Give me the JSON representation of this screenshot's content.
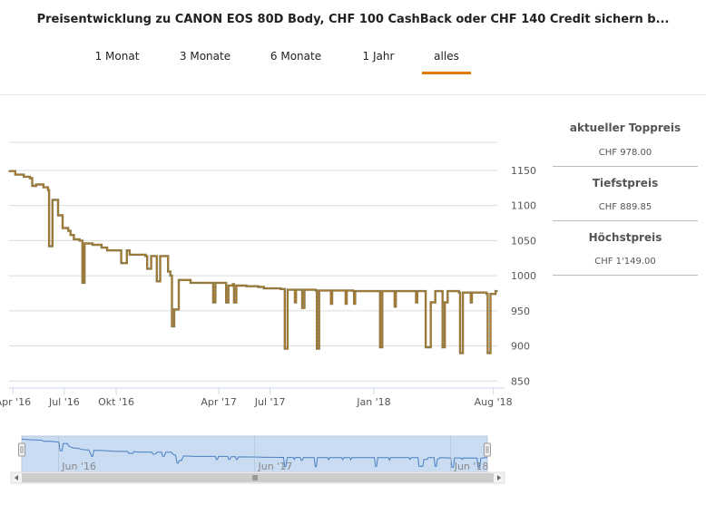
{
  "title": "Preisentwicklung zu CANON EOS 80D Body, CHF 100 CashBack oder CHF 140 Credit sichern b...",
  "tabs": [
    "1 Monat",
    "3 Monate",
    "6 Monate",
    "1 Jahr",
    "alles"
  ],
  "active_tab": "alles",
  "side": {
    "current_label": "aktueller Toppreis",
    "current_value": "CHF 978.00",
    "min_label": "Tiefstpreis",
    "min_value": "CHF 889.85",
    "max_label": "Höchstpreis",
    "max_value": "CHF 1'149.00"
  },
  "colors": {
    "accent": "#e07b00",
    "line_main": "#8a7a4a",
    "navigator_fill": "#c9dcf2",
    "navigator_line": "#4a7fc1"
  },
  "chart_data": {
    "type": "line",
    "y_ticks": [
      "1150",
      "1100",
      "1050",
      "1000",
      "950",
      "900",
      "850"
    ],
    "ylim": [
      840,
      1190
    ],
    "x_ticks": [
      "Apr '16",
      "Jul '16",
      "Okt '16",
      "Apr '17",
      "Jul '17",
      "Jan '18",
      "Aug '18"
    ],
    "nav_ticks": [
      "Jun '16",
      "Jun '17",
      "Jun '18"
    ],
    "grid": true,
    "x_range": [
      "2016-03-25",
      "2018-08-08"
    ],
    "series": [
      {
        "values": [
          [
            "2016-03-25",
            1149
          ],
          [
            "2016-04-05",
            1144
          ],
          [
            "2016-04-20",
            1141
          ],
          [
            "2016-05-01",
            1139
          ],
          [
            "2016-05-05",
            1128
          ],
          [
            "2016-05-12",
            1130
          ],
          [
            "2016-05-25",
            1126
          ],
          [
            "2016-06-02",
            1122
          ],
          [
            "2016-06-04",
            1042
          ],
          [
            "2016-06-08",
            1042
          ],
          [
            "2016-06-10",
            1108
          ],
          [
            "2016-06-18",
            1108
          ],
          [
            "2016-06-20",
            1086
          ],
          [
            "2016-06-28",
            1068
          ],
          [
            "2016-07-08",
            1064
          ],
          [
            "2016-07-12",
            1058
          ],
          [
            "2016-07-18",
            1052
          ],
          [
            "2016-07-28",
            1050
          ],
          [
            "2016-08-02",
            990
          ],
          [
            "2016-08-04",
            990
          ],
          [
            "2016-08-06",
            1046
          ],
          [
            "2016-08-20",
            1044
          ],
          [
            "2016-09-05",
            1040
          ],
          [
            "2016-09-15",
            1036
          ],
          [
            "2016-09-25",
            1036
          ],
          [
            "2016-10-08",
            1036
          ],
          [
            "2016-10-10",
            1018
          ],
          [
            "2016-10-18",
            1018
          ],
          [
            "2016-10-20",
            1036
          ],
          [
            "2016-10-25",
            1030
          ],
          [
            "2016-11-05",
            1030
          ],
          [
            "2016-11-22",
            1028
          ],
          [
            "2016-11-25",
            1010
          ],
          [
            "2016-11-28",
            1010
          ],
          [
            "2016-12-02",
            1028
          ],
          [
            "2016-12-10",
            1028
          ],
          [
            "2016-12-12",
            992
          ],
          [
            "2016-12-15",
            992
          ],
          [
            "2016-12-18",
            1028
          ],
          [
            "2016-12-28",
            1028
          ],
          [
            "2017-01-01",
            1006
          ],
          [
            "2017-01-05",
            1000
          ],
          [
            "2017-01-08",
            928
          ],
          [
            "2017-01-10",
            928
          ],
          [
            "2017-01-12",
            952
          ],
          [
            "2017-01-16",
            952
          ],
          [
            "2017-01-20",
            994
          ],
          [
            "2017-02-10",
            990
          ],
          [
            "2017-03-01",
            990
          ],
          [
            "2017-03-20",
            990
          ],
          [
            "2017-03-22",
            962
          ],
          [
            "2017-03-24",
            962
          ],
          [
            "2017-03-26",
            990
          ],
          [
            "2017-04-12",
            990
          ],
          [
            "2017-04-14",
            962
          ],
          [
            "2017-04-16",
            962
          ],
          [
            "2017-04-18",
            986
          ],
          [
            "2017-04-26",
            988
          ],
          [
            "2017-04-28",
            962
          ],
          [
            "2017-04-30",
            962
          ],
          [
            "2017-05-02",
            986
          ],
          [
            "2017-05-20",
            985
          ],
          [
            "2017-06-10",
            984
          ],
          [
            "2017-06-20",
            982
          ],
          [
            "2017-07-05",
            982
          ],
          [
            "2017-07-20",
            981
          ],
          [
            "2017-07-25",
            981
          ],
          [
            "2017-07-27",
            896
          ],
          [
            "2017-07-29",
            896
          ],
          [
            "2017-08-01",
            980
          ],
          [
            "2017-08-12",
            980
          ],
          [
            "2017-08-14",
            962
          ],
          [
            "2017-08-16",
            980
          ],
          [
            "2017-08-25",
            980
          ],
          [
            "2017-08-27",
            954
          ],
          [
            "2017-08-29",
            954
          ],
          [
            "2017-08-31",
            980
          ],
          [
            "2017-09-20",
            979
          ],
          [
            "2017-09-22",
            896
          ],
          [
            "2017-09-24",
            896
          ],
          [
            "2017-09-26",
            979
          ],
          [
            "2017-10-15",
            979
          ],
          [
            "2017-10-17",
            960
          ],
          [
            "2017-10-19",
            979
          ],
          [
            "2017-11-10",
            979
          ],
          [
            "2017-11-12",
            960
          ],
          [
            "2017-11-14",
            979
          ],
          [
            "2017-11-25",
            978
          ],
          [
            "2017-11-27",
            960
          ],
          [
            "2017-11-29",
            978
          ],
          [
            "2018-01-10",
            978
          ],
          [
            "2018-01-12",
            898
          ],
          [
            "2018-01-14",
            898
          ],
          [
            "2018-01-16",
            978
          ],
          [
            "2018-02-05",
            978
          ],
          [
            "2018-02-07",
            956
          ],
          [
            "2018-02-09",
            978
          ],
          [
            "2018-03-15",
            978
          ],
          [
            "2018-03-17",
            962
          ],
          [
            "2018-03-19",
            978
          ],
          [
            "2018-04-01",
            978
          ],
          [
            "2018-04-03",
            898
          ],
          [
            "2018-04-10",
            898
          ],
          [
            "2018-04-12",
            962
          ],
          [
            "2018-04-18",
            962
          ],
          [
            "2018-04-20",
            978
          ],
          [
            "2018-05-01",
            978
          ],
          [
            "2018-05-03",
            898
          ],
          [
            "2018-05-05",
            898
          ],
          [
            "2018-05-07",
            962
          ],
          [
            "2018-05-12",
            978
          ],
          [
            "2018-06-01",
            976
          ],
          [
            "2018-06-03",
            889.85
          ],
          [
            "2018-06-06",
            889.85
          ],
          [
            "2018-06-08",
            976
          ],
          [
            "2018-06-20",
            976
          ],
          [
            "2018-06-22",
            962
          ],
          [
            "2018-06-24",
            976
          ],
          [
            "2018-07-20",
            974
          ],
          [
            "2018-07-22",
            889.85
          ],
          [
            "2018-07-25",
            889.85
          ],
          [
            "2018-07-27",
            974
          ],
          [
            "2018-08-05",
            978
          ],
          [
            "2018-08-08",
            978
          ]
        ]
      }
    ]
  }
}
